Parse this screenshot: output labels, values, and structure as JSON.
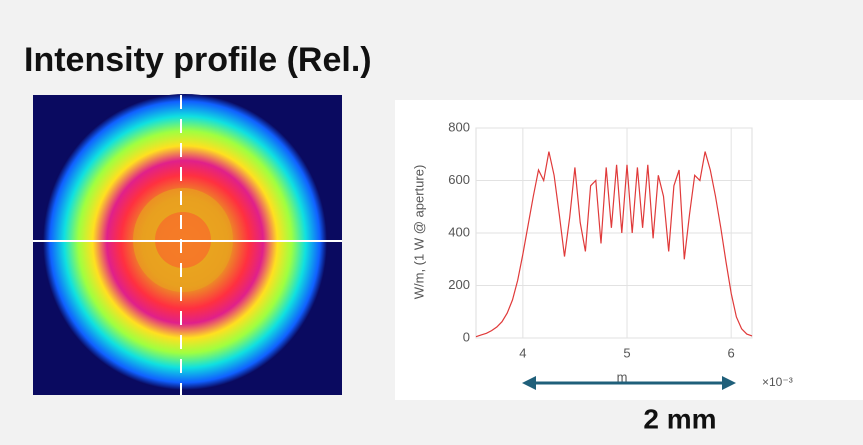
{
  "heading": "Intensity profile (Rel.)",
  "chart_data": {
    "type": "line",
    "x_label": "m",
    "y_label": "W/m, (1 W @ aperture)",
    "x_offset_text": "×10⁻³",
    "annotation": "2 mm",
    "x": [
      3.55,
      3.6,
      3.65,
      3.7,
      3.75,
      3.8,
      3.85,
      3.9,
      3.95,
      4.0,
      4.05,
      4.1,
      4.15,
      4.2,
      4.25,
      4.3,
      4.35,
      4.4,
      4.45,
      4.5,
      4.55,
      4.6,
      4.65,
      4.7,
      4.75,
      4.8,
      4.85,
      4.9,
      4.95,
      5.0,
      5.05,
      5.1,
      5.15,
      5.2,
      5.25,
      5.3,
      5.35,
      5.4,
      5.45,
      5.5,
      5.55,
      5.6,
      5.65,
      5.7,
      5.75,
      5.8,
      5.85,
      5.9,
      5.95,
      6.0,
      6.05,
      6.1,
      6.15,
      6.2
    ],
    "values": [
      5,
      12,
      18,
      28,
      42,
      62,
      95,
      145,
      220,
      320,
      430,
      540,
      640,
      600,
      710,
      620,
      470,
      310,
      460,
      650,
      440,
      330,
      580,
      600,
      360,
      650,
      420,
      660,
      400,
      660,
      400,
      650,
      420,
      660,
      380,
      620,
      540,
      330,
      580,
      640,
      300,
      470,
      620,
      600,
      710,
      640,
      540,
      420,
      290,
      170,
      80,
      35,
      15,
      8
    ],
    "color": "#e03a3a",
    "xlim": [
      3.55,
      6.2
    ],
    "xticks": [
      4,
      5,
      6
    ],
    "ylim": [
      0,
      800
    ],
    "yticks": [
      0,
      200,
      400,
      600,
      800
    ],
    "grid": true
  }
}
